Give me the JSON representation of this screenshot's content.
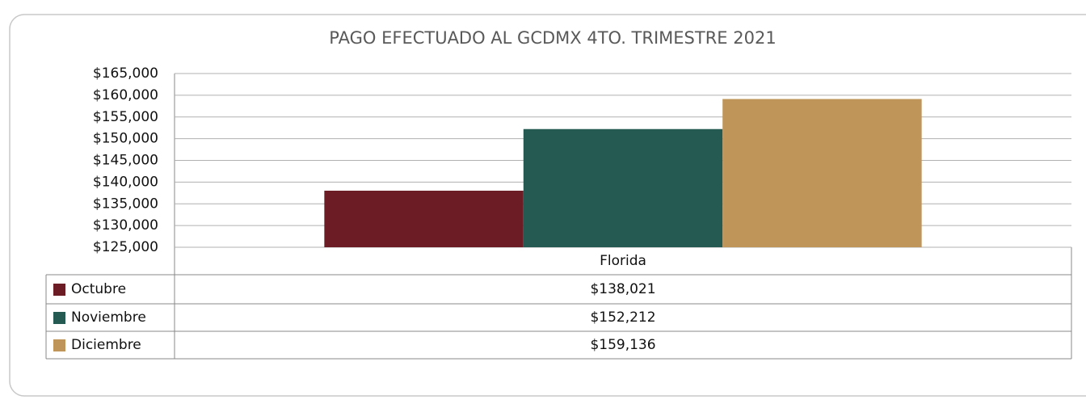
{
  "chart_data": {
    "type": "bar",
    "title": "PAGO EFECTUADO AL GCDMX 4TO. TRIMESTRE 2021",
    "categories": [
      "Florida"
    ],
    "series": [
      {
        "name": "Octubre",
        "color": "#6b1c24",
        "values": [
          138021
        ],
        "value_labels": [
          "$138,021"
        ]
      },
      {
        "name": "Noviembre",
        "color": "#245a52",
        "values": [
          152212
        ],
        "value_labels": [
          "$152,212"
        ]
      },
      {
        "name": "Diciembre",
        "color": "#bf955a",
        "values": [
          159136
        ],
        "value_labels": [
          "$159,136"
        ]
      }
    ],
    "ylim": [
      125000,
      165000
    ],
    "yticks": [
      {
        "value": 125000,
        "label": "$125,000"
      },
      {
        "value": 130000,
        "label": "$130,000"
      },
      {
        "value": 135000,
        "label": "$135,000"
      },
      {
        "value": 140000,
        "label": "$140,000"
      },
      {
        "value": 145000,
        "label": "$145,000"
      },
      {
        "value": 150000,
        "label": "$150,000"
      },
      {
        "value": 155000,
        "label": "$155,000"
      },
      {
        "value": 160000,
        "label": "$160,000"
      },
      {
        "value": 165000,
        "label": "$165,000"
      }
    ],
    "grid": true
  }
}
